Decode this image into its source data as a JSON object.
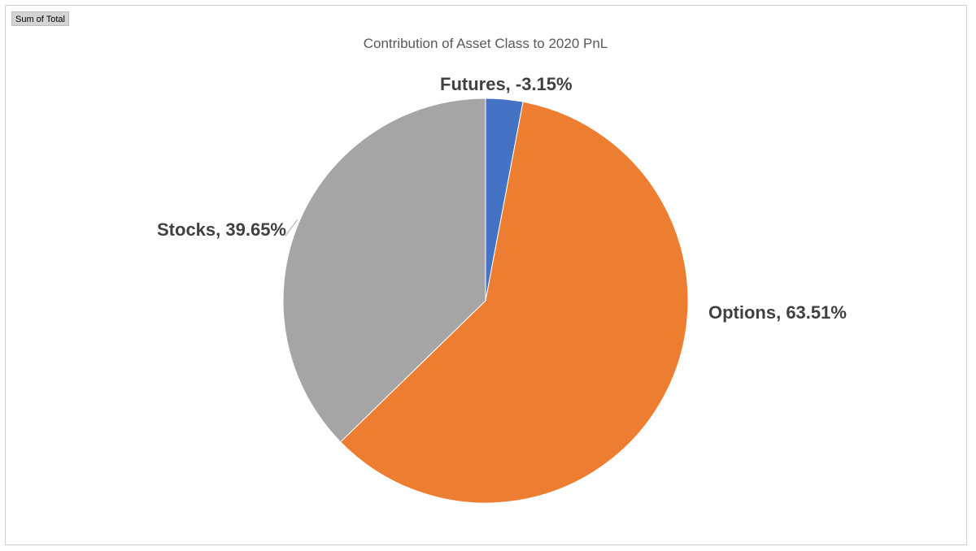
{
  "field_button": {
    "label": "Sum of Total"
  },
  "chart_data": {
    "type": "pie",
    "title": "Contribution of Asset Class to 2020 PnL",
    "categories": [
      "Futures",
      "Options",
      "Stocks"
    ],
    "values": [
      -3.15,
      63.51,
      39.65
    ],
    "labels": [
      "Futures, -3.15%",
      "Options, 63.51%",
      "Stocks, 39.65%"
    ],
    "unit": "%",
    "colors": [
      "#4472C4",
      "#ED7D31",
      "#A5A5A5"
    ],
    "legend": "none",
    "data_labels": "category, percent"
  }
}
